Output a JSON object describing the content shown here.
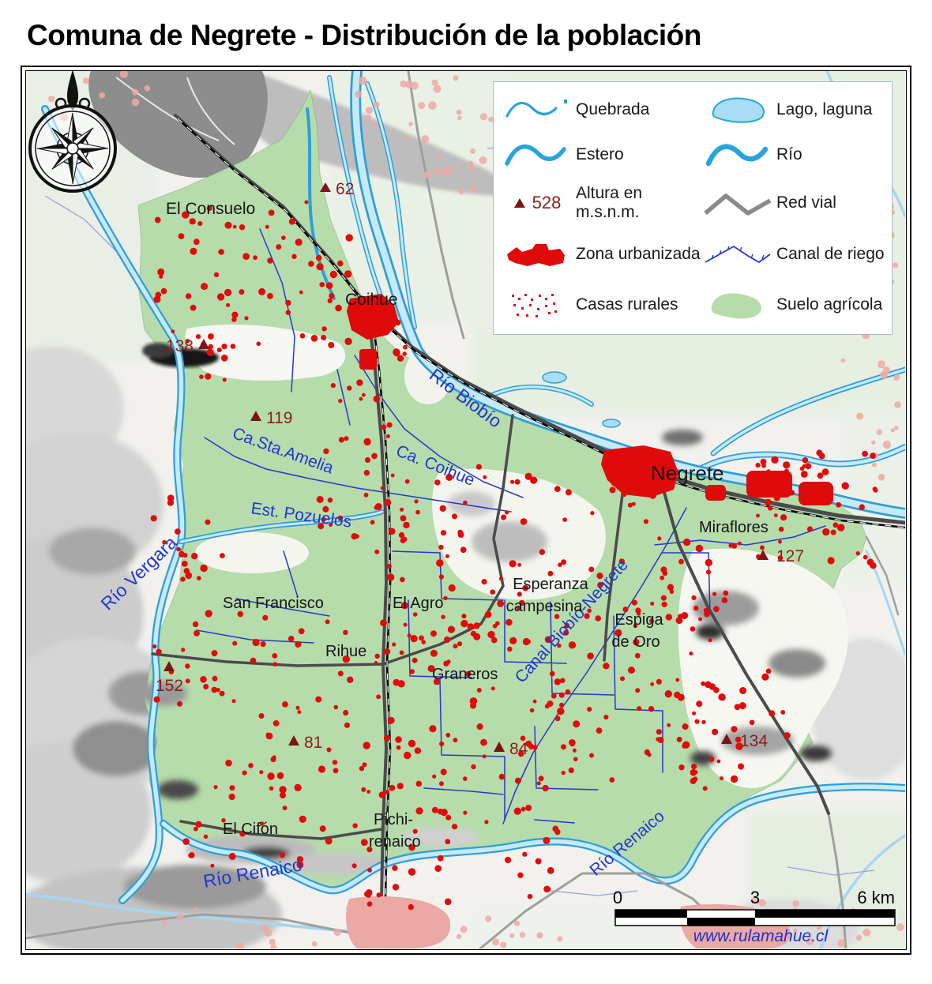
{
  "title": "Comuna de Negrete - Distribución de la población",
  "legend": {
    "items_left": [
      {
        "id": "quebrada",
        "label": "Quebrada"
      },
      {
        "id": "estero",
        "label": "Estero"
      },
      {
        "id": "altura",
        "label": "Altura en m.s.n.m.",
        "value": "528"
      },
      {
        "id": "zona-urbanizada",
        "label": "Zona urbanizada"
      },
      {
        "id": "casas-rurales",
        "label": "Casas rurales"
      }
    ],
    "items_right": [
      {
        "id": "lago-laguna",
        "label": "Lago, laguna"
      },
      {
        "id": "rio",
        "label": "Río"
      },
      {
        "id": "red-vial",
        "label": "Red vial"
      },
      {
        "id": "canal-de-riego",
        "label": "Canal de riego"
      },
      {
        "id": "suelo-agricola",
        "label": "Suelo agrícola"
      }
    ]
  },
  "places": {
    "el_consuelo": "El Consuelo",
    "coihue": "Coihue",
    "negrete": "Negrete",
    "miraflores": "Miraflores",
    "san_francisco": "San Francisco",
    "el_agro": "El Agro",
    "esperanza_line1": "Esperanza",
    "esperanza_line2": "campesina",
    "espiga_line1": "Espiga",
    "espiga_line2": "de Oro",
    "rihue": "Rihue",
    "graneros": "Graneros",
    "el_cifon": "El Cifón",
    "pichi_line1": "Pichi-",
    "pichi_line2": "renaico"
  },
  "waters": {
    "rio_biobio": "Río Biobío",
    "rio_vergara": "Río Vergara",
    "rio_renaico_sw": "Río Renaico",
    "rio_renaico_se": "Río Renaico",
    "canal_biobio_negrete": "Canal Biobío-Negrete",
    "ca_coihue": "Ca. Coihue",
    "ca_sta_amelia": "Ca.Sta.Amelia",
    "est_pozuelos": "Est. Pozuelos"
  },
  "elevations": {
    "e62": "62",
    "e138": "138",
    "e119": "119",
    "e127": "127",
    "e152": "152",
    "e81": "81",
    "e84": "84",
    "e134": "134"
  },
  "scalebar": {
    "zero": "0",
    "three": "3",
    "six": "6 km"
  },
  "credit": "www.rulamahue.cl",
  "colors": {
    "water_stroke": "#2f9fd6",
    "water_fill": "#c6e9f8",
    "agricultural": "#b6dcab",
    "urban_red": "#df0a0a",
    "rural_dot": "#e10b0b",
    "rural_dot_outside": "#efa9a5",
    "canal_blue": "#2838c8",
    "road_gray": "#4b4b4b",
    "water_label": "#2236cf",
    "elevation_red": "#8b1d1d",
    "credit_blue": "#2030c8"
  }
}
